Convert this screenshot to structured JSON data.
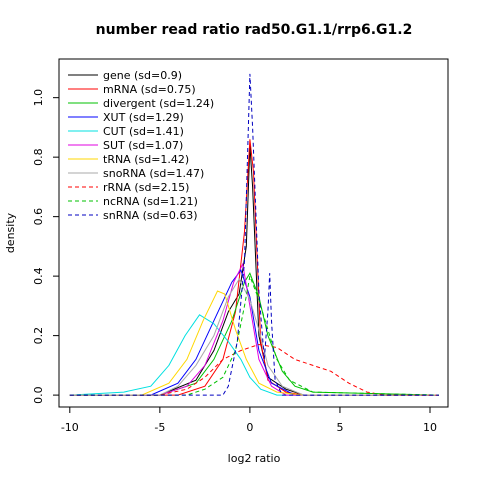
{
  "chart_data": {
    "type": "line",
    "title": "number read ratio rad50.G1.1/rrp6.G1.2",
    "xlabel": "log2 ratio",
    "ylabel": "density",
    "xlim": [
      -10.6,
      11.0
    ],
    "ylim": [
      -0.04,
      1.13
    ],
    "x_ticks": [
      -10,
      -5,
      0,
      5,
      10
    ],
    "y_ticks": [
      0.0,
      0.2,
      0.4,
      0.6,
      0.8,
      1.0
    ],
    "x_tick_labels": [
      "-10",
      "-5",
      "0",
      "5",
      "10"
    ],
    "y_tick_labels": [
      "0.0",
      "0.2",
      "0.4",
      "0.6",
      "0.8",
      "1.0"
    ],
    "grid": false,
    "legend_position": "top-left",
    "series": [
      {
        "name": "gene (sd=0.9)",
        "color": "#000000",
        "dash": "solid",
        "points": [
          [
            -10,
            0
          ],
          [
            -5,
            0
          ],
          [
            -3,
            0.05
          ],
          [
            -2,
            0.15
          ],
          [
            -1.2,
            0.28
          ],
          [
            -0.6,
            0.34
          ],
          [
            -0.2,
            0.5
          ],
          [
            0,
            0.84
          ],
          [
            0.15,
            0.7
          ],
          [
            0.5,
            0.2
          ],
          [
            1,
            0.06
          ],
          [
            2,
            0.02
          ],
          [
            3,
            0
          ],
          [
            10.5,
            0
          ]
        ]
      },
      {
        "name": "mRNA (sd=0.75)",
        "color": "#ff0000",
        "dash": "solid",
        "points": [
          [
            -10,
            0
          ],
          [
            -4,
            0
          ],
          [
            -2.5,
            0.03
          ],
          [
            -1.5,
            0.12
          ],
          [
            -0.8,
            0.28
          ],
          [
            -0.3,
            0.55
          ],
          [
            0,
            0.86
          ],
          [
            0.2,
            0.75
          ],
          [
            0.6,
            0.18
          ],
          [
            1,
            0.05
          ],
          [
            2,
            0.01
          ],
          [
            3,
            0
          ],
          [
            10.5,
            0
          ]
        ]
      },
      {
        "name": "divergent (sd=1.24)",
        "color": "#00c000",
        "dash": "solid",
        "points": [
          [
            -10,
            0
          ],
          [
            -5,
            0
          ],
          [
            -3,
            0.04
          ],
          [
            -2,
            0.12
          ],
          [
            -1,
            0.25
          ],
          [
            -0.3,
            0.38
          ],
          [
            0,
            0.41
          ],
          [
            0.5,
            0.33
          ],
          [
            1,
            0.2
          ],
          [
            1.8,
            0.08
          ],
          [
            2.5,
            0.03
          ],
          [
            3.5,
            0.01
          ],
          [
            10.5,
            0
          ]
        ]
      },
      {
        "name": "XUT (sd=1.29)",
        "color": "#0000ff",
        "dash": "solid",
        "points": [
          [
            -10,
            0
          ],
          [
            -5.5,
            0
          ],
          [
            -4,
            0.04
          ],
          [
            -3,
            0.12
          ],
          [
            -2,
            0.25
          ],
          [
            -1,
            0.38
          ],
          [
            -0.5,
            0.42
          ],
          [
            0,
            0.33
          ],
          [
            0.5,
            0.15
          ],
          [
            1.2,
            0.04
          ],
          [
            2.5,
            0
          ],
          [
            10.5,
            0
          ]
        ]
      },
      {
        "name": "CUT (sd=1.41)",
        "color": "#00e0e0",
        "dash": "solid",
        "points": [
          [
            -10,
            0
          ],
          [
            -7,
            0.01
          ],
          [
            -5.5,
            0.03
          ],
          [
            -4.5,
            0.1
          ],
          [
            -3.6,
            0.2
          ],
          [
            -2.8,
            0.27
          ],
          [
            -2,
            0.24
          ],
          [
            -1.2,
            0.18
          ],
          [
            -0.5,
            0.12
          ],
          [
            0,
            0.06
          ],
          [
            0.6,
            0.02
          ],
          [
            1.5,
            0
          ],
          [
            10.5,
            0
          ]
        ]
      },
      {
        "name": "SUT (sd=1.07)",
        "color": "#e000e0",
        "dash": "solid",
        "points": [
          [
            -10,
            0
          ],
          [
            -5,
            0
          ],
          [
            -3.5,
            0.03
          ],
          [
            -2.5,
            0.1
          ],
          [
            -1.5,
            0.25
          ],
          [
            -0.9,
            0.38
          ],
          [
            -0.4,
            0.44
          ],
          [
            0,
            0.3
          ],
          [
            0.5,
            0.12
          ],
          [
            1.2,
            0.03
          ],
          [
            2,
            0
          ],
          [
            10.5,
            0
          ]
        ]
      },
      {
        "name": "tRNA (sd=1.42)",
        "color": "#ffd700",
        "dash": "solid",
        "points": [
          [
            -10,
            0
          ],
          [
            -6,
            0
          ],
          [
            -4.5,
            0.04
          ],
          [
            -3.5,
            0.12
          ],
          [
            -2.6,
            0.25
          ],
          [
            -1.8,
            0.35
          ],
          [
            -1.4,
            0.34
          ],
          [
            -0.8,
            0.22
          ],
          [
            -0.2,
            0.12
          ],
          [
            0.5,
            0.04
          ],
          [
            1.5,
            0.01
          ],
          [
            3,
            0
          ],
          [
            10.5,
            0
          ]
        ]
      },
      {
        "name": "snoRNA (sd=1.47)",
        "color": "#aaaaaa",
        "dash": "solid",
        "points": [
          [
            -10,
            0
          ],
          [
            -5,
            0
          ],
          [
            -4,
            0.03
          ],
          [
            -3,
            0.1
          ],
          [
            -2,
            0.2
          ],
          [
            -1.2,
            0.33
          ],
          [
            -0.6,
            0.39
          ],
          [
            0,
            0.32
          ],
          [
            0.5,
            0.22
          ],
          [
            1,
            0.1
          ],
          [
            1.8,
            0.03
          ],
          [
            3,
            0
          ],
          [
            10.5,
            0
          ]
        ]
      },
      {
        "name": "rRNA (sd=2.15)",
        "color": "#ff0000",
        "dash": "dashed",
        "points": [
          [
            -10,
            0
          ],
          [
            -5,
            0
          ],
          [
            -3.5,
            0.02
          ],
          [
            -2.5,
            0.06
          ],
          [
            -1.5,
            0.12
          ],
          [
            -0.5,
            0.15
          ],
          [
            0.5,
            0.17
          ],
          [
            1.5,
            0.16
          ],
          [
            2.5,
            0.12
          ],
          [
            3.5,
            0.1
          ],
          [
            4.5,
            0.08
          ],
          [
            5.5,
            0.04
          ],
          [
            6.5,
            0.01
          ],
          [
            7.5,
            0
          ],
          [
            10.5,
            0
          ]
        ]
      },
      {
        "name": "ncRNA (sd=1.21)",
        "color": "#00c000",
        "dash": "dashed",
        "points": [
          [
            -10,
            0
          ],
          [
            -3.5,
            0
          ],
          [
            -2.5,
            0.02
          ],
          [
            -1.5,
            0.06
          ],
          [
            -0.8,
            0.15
          ],
          [
            -0.3,
            0.3
          ],
          [
            0,
            0.4
          ],
          [
            0.5,
            0.32
          ],
          [
            1,
            0.22
          ],
          [
            1.5,
            0.12
          ],
          [
            2.2,
            0.05
          ],
          [
            3.5,
            0.01
          ],
          [
            10.5,
            0
          ]
        ]
      },
      {
        "name": "snRNA (sd=0.63)",
        "color": "#0000c0",
        "dash": "dashed",
        "points": [
          [
            -10,
            0
          ],
          [
            -1.5,
            0
          ],
          [
            -1.2,
            0.03
          ],
          [
            -0.7,
            0.18
          ],
          [
            -0.3,
            0.45
          ],
          [
            0,
            1.08
          ],
          [
            0.15,
            0.9
          ],
          [
            0.5,
            0.35
          ],
          [
            0.8,
            0.12
          ],
          [
            1.0,
            0.28
          ],
          [
            1.1,
            0.41
          ],
          [
            1.2,
            0.25
          ],
          [
            1.4,
            0.05
          ],
          [
            1.8,
            0
          ],
          [
            10.5,
            0
          ]
        ]
      }
    ]
  }
}
